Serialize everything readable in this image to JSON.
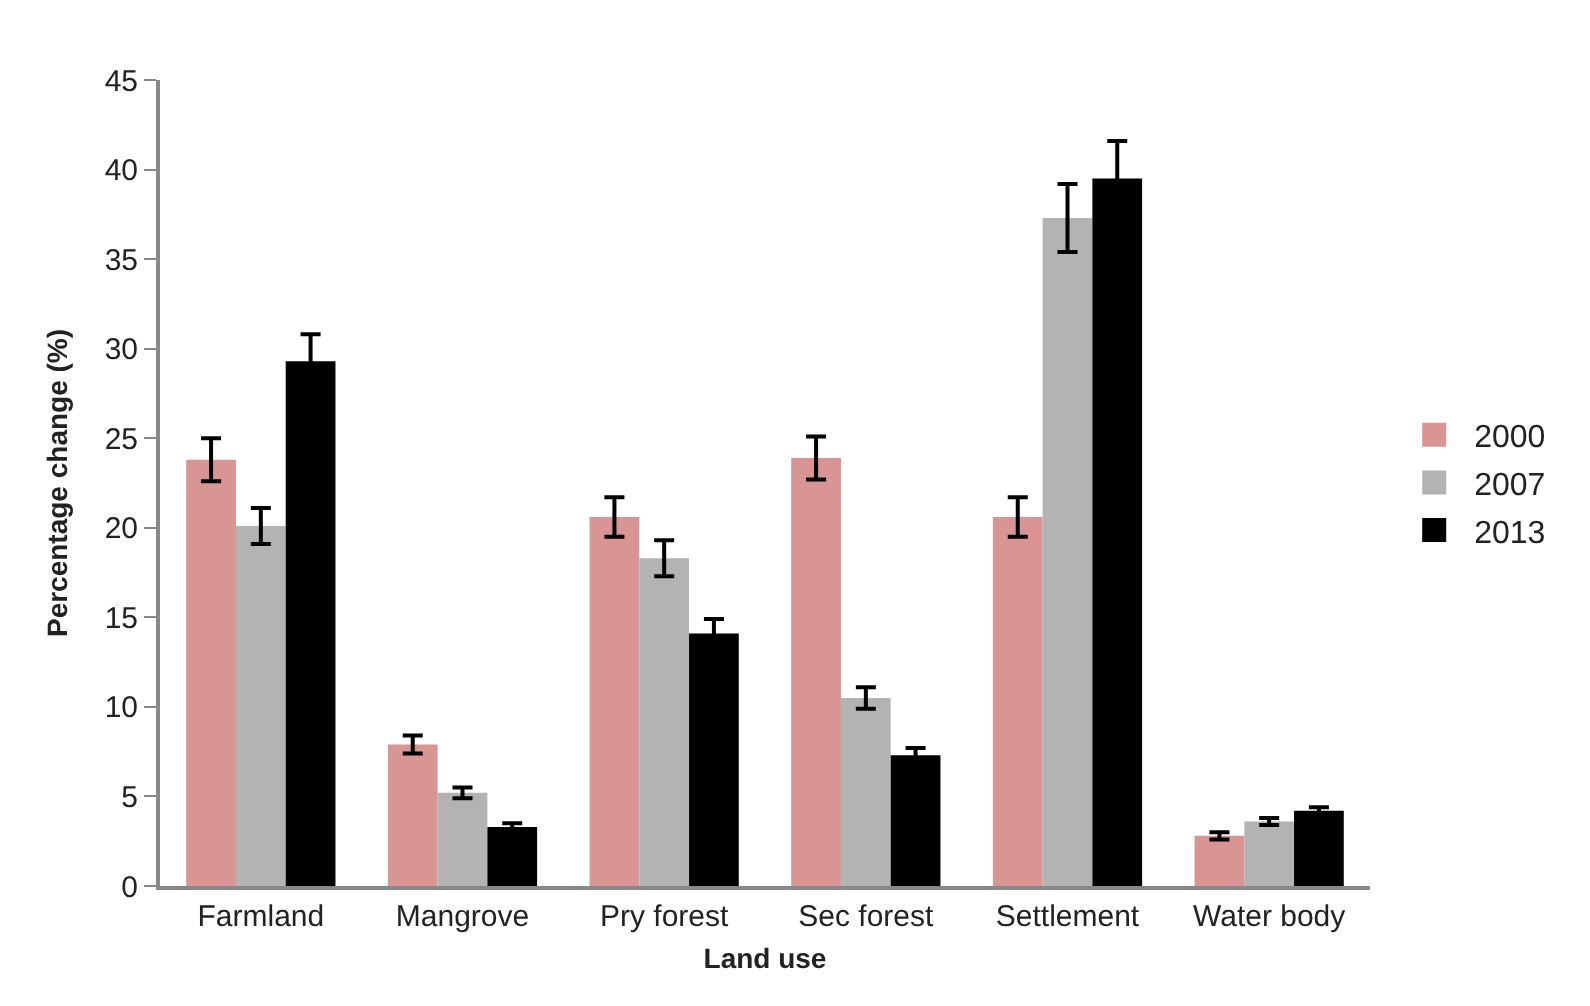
{
  "chart_data": {
    "type": "bar",
    "xlabel": "Land use",
    "ylabel": "Percentage change (%)",
    "categories": [
      "Farmland",
      "Mangrove",
      "Pry forest",
      "Sec forest",
      "Settlement",
      "Water body"
    ],
    "series": [
      {
        "name": "2000",
        "color": "#d99594",
        "values": [
          23.8,
          7.9,
          20.6,
          23.9,
          20.6,
          2.8
        ],
        "errors": [
          1.2,
          0.5,
          1.1,
          1.2,
          1.1,
          0.2
        ]
      },
      {
        "name": "2007",
        "color": "#b3b3b3",
        "values": [
          20.1,
          5.2,
          18.3,
          10.5,
          37.3,
          3.6
        ],
        "errors": [
          1.0,
          0.3,
          1.0,
          0.6,
          1.9,
          0.2
        ]
      },
      {
        "name": "2013",
        "color": "#000000",
        "values": [
          29.3,
          3.3,
          14.1,
          7.3,
          39.5,
          4.2
        ],
        "errors": [
          1.5,
          0.2,
          0.8,
          0.4,
          2.1,
          0.2
        ]
      }
    ],
    "ylim": [
      0,
      45
    ],
    "yticks": [
      0,
      5,
      10,
      15,
      20,
      25,
      30,
      35,
      40,
      45
    ],
    "grid": false,
    "legend": "right"
  }
}
